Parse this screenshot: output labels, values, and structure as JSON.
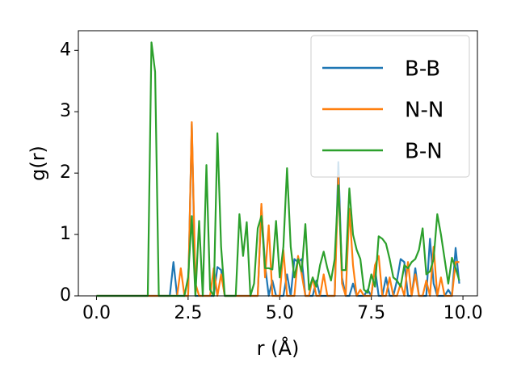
{
  "chart_data": {
    "type": "line",
    "xlabel": "r (Å)",
    "ylabel": "g(r)",
    "x": [
      0,
      0.1,
      0.2,
      0.3,
      0.4,
      0.5,
      0.6,
      0.7,
      0.8,
      0.9,
      1,
      1.1,
      1.2,
      1.3,
      1.4,
      1.5,
      1.6,
      1.7,
      1.8,
      1.9,
      2,
      2.1,
      2.2,
      2.3,
      2.4,
      2.5,
      2.6,
      2.7,
      2.8,
      2.9,
      3,
      3.1,
      3.2,
      3.3,
      3.4,
      3.5,
      3.6,
      3.7,
      3.8,
      3.9,
      4,
      4.1,
      4.2,
      4.3,
      4.4,
      4.5,
      4.6,
      4.7,
      4.8,
      4.9,
      5,
      5.1,
      5.2,
      5.3,
      5.4,
      5.5,
      5.6,
      5.7,
      5.8,
      5.9,
      6,
      6.1,
      6.2,
      6.3,
      6.4,
      6.5,
      6.6,
      6.7,
      6.8,
      6.9,
      7,
      7.1,
      7.2,
      7.3,
      7.4,
      7.5,
      7.6,
      7.7,
      7.8,
      7.9,
      8,
      8.1,
      8.2,
      8.3,
      8.4,
      8.5,
      8.6,
      8.7,
      8.8,
      8.9,
      9,
      9.1,
      9.2,
      9.3,
      9.4,
      9.5,
      9.6,
      9.7,
      9.8,
      9.9
    ],
    "series": [
      {
        "name": "B-B",
        "color": "#1f77b4",
        "values": [
          0,
          0,
          0,
          0,
          0,
          0,
          0,
          0,
          0,
          0,
          0,
          0,
          0,
          0,
          0,
          0,
          0,
          0,
          0,
          0,
          0,
          0.55,
          0,
          0,
          0,
          0,
          2.8,
          0,
          0,
          0,
          0,
          0,
          0,
          0.47,
          0.42,
          0,
          0,
          0,
          0,
          0,
          0,
          0,
          0,
          0,
          0,
          1.45,
          0.5,
          0,
          0.25,
          0,
          0,
          0,
          0.35,
          0,
          0.6,
          0.55,
          0.6,
          0,
          0,
          0,
          0.25,
          0,
          0,
          0,
          0,
          0,
          2.18,
          0.3,
          0,
          0,
          0.2,
          0,
          0,
          0,
          0.1,
          0,
          0.45,
          0,
          0,
          0.3,
          0,
          0,
          0.25,
          0.6,
          0.55,
          0,
          0,
          0.45,
          0,
          0,
          0,
          0.93,
          0.2,
          0,
          0,
          0,
          0.1,
          0,
          0.78,
          0.2
        ]
      },
      {
        "name": "N-N",
        "color": "#ff7f0e",
        "values": [
          0,
          0,
          0,
          0,
          0,
          0,
          0,
          0,
          0,
          0,
          0,
          0,
          0,
          0,
          0,
          0,
          0,
          0,
          0,
          0,
          0,
          0,
          0,
          0.45,
          0,
          0,
          2.83,
          0.2,
          0,
          0,
          0,
          0,
          0.45,
          0,
          0.35,
          0,
          0,
          0,
          0,
          0,
          0,
          0,
          0,
          0,
          0,
          1.5,
          0.3,
          1.15,
          0,
          0,
          0,
          0.75,
          0,
          0,
          0,
          0.65,
          0.35,
          0,
          0,
          0.3,
          0,
          0,
          0.35,
          0,
          0,
          0,
          1.95,
          0.2,
          0,
          1.42,
          0.5,
          0,
          0.1,
          0,
          0,
          0,
          0.5,
          0.65,
          0,
          0,
          0.3,
          0,
          0,
          0.2,
          0,
          0.55,
          0,
          0.35,
          0,
          0,
          0.25,
          0,
          0.8,
          0,
          0.3,
          0,
          0,
          0,
          0.55,
          0.55
        ]
      },
      {
        "name": "B-N",
        "color": "#2ca02c",
        "values": [
          0,
          0,
          0,
          0,
          0,
          0,
          0,
          0,
          0,
          0,
          0,
          0,
          0,
          0,
          0,
          4.13,
          3.65,
          0,
          0,
          0,
          0,
          0,
          0,
          0,
          0,
          0.3,
          1.3,
          0,
          1.22,
          0,
          2.13,
          0.1,
          0,
          2.65,
          0.8,
          0,
          0,
          0,
          0,
          1.33,
          0.65,
          1.2,
          0,
          0.2,
          1.1,
          1.3,
          0.45,
          0.45,
          0.43,
          1.22,
          0.3,
          0.8,
          2.08,
          0.8,
          0.3,
          0.6,
          0.4,
          1.17,
          0.1,
          0.3,
          0.15,
          0.5,
          0.72,
          0.45,
          0.25,
          0.6,
          1.8,
          0.42,
          0.42,
          1.75,
          1.0,
          0.75,
          0.6,
          0.1,
          0.05,
          0.35,
          0.15,
          0.97,
          0.93,
          0.85,
          0.6,
          0.3,
          0.25,
          0.15,
          0.5,
          0.45,
          0.55,
          0.6,
          0.75,
          1.1,
          0.35,
          0.4,
          0.6,
          1.33,
          1.0,
          0.6,
          0.2,
          0.62,
          0.45,
          0.25
        ]
      }
    ],
    "xlim": [
      -0.495,
      10.395
    ],
    "ylim": [
      0,
      4.32
    ],
    "xticks": [
      {
        "value": 0,
        "label": "0.0"
      },
      2.5,
      {
        "value": 5,
        "label": "5.0"
      },
      7.5,
      {
        "value": 10,
        "label": "10.0"
      }
    ],
    "yticks": [
      0,
      1,
      2,
      3,
      4
    ],
    "legend": "upper right"
  }
}
